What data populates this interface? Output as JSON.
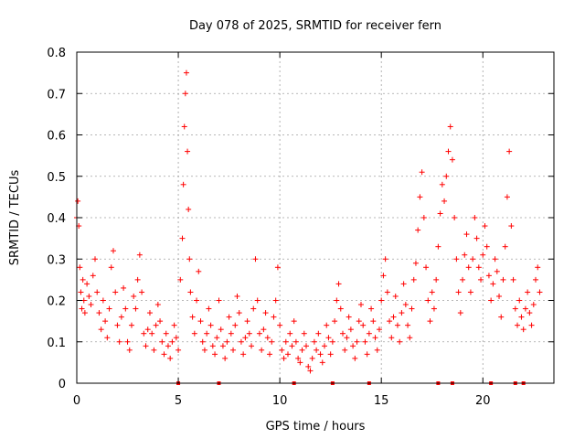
{
  "chart_data": {
    "type": "scatter",
    "title": "Day 078 of 2025, SRMTID for receiver fern",
    "xlabel": "GPS time / hours",
    "ylabel": "SRMTID / TECUs",
    "xlim": [
      0,
      23.5
    ],
    "ylim": [
      0,
      0.8
    ],
    "xticks": [
      0,
      5,
      10,
      15,
      20
    ],
    "yticks": [
      0,
      0.1,
      0.2,
      0.3,
      0.4,
      0.5,
      0.6,
      0.7,
      0.8
    ],
    "grid": true,
    "marker": "plus",
    "color": "#ff0000",
    "series": [
      {
        "name": "SRMTID",
        "points": [
          [
            0.0,
            0.4
          ],
          [
            0.05,
            0.44
          ],
          [
            0.1,
            0.38
          ],
          [
            0.15,
            0.28
          ],
          [
            0.2,
            0.22
          ],
          [
            0.25,
            0.18
          ],
          [
            0.3,
            0.25
          ],
          [
            0.35,
            0.2
          ],
          [
            0.4,
            0.17
          ],
          [
            0.5,
            0.24
          ],
          [
            0.6,
            0.21
          ],
          [
            0.7,
            0.19
          ],
          [
            0.8,
            0.26
          ],
          [
            0.9,
            0.3
          ],
          [
            1.0,
            0.22
          ],
          [
            1.1,
            0.17
          ],
          [
            1.2,
            0.13
          ],
          [
            1.3,
            0.2
          ],
          [
            1.4,
            0.15
          ],
          [
            1.5,
            0.11
          ],
          [
            1.6,
            0.18
          ],
          [
            1.7,
            0.28
          ],
          [
            1.8,
            0.32
          ],
          [
            1.9,
            0.22
          ],
          [
            2.0,
            0.14
          ],
          [
            2.1,
            0.1
          ],
          [
            2.2,
            0.16
          ],
          [
            2.3,
            0.23
          ],
          [
            2.4,
            0.18
          ],
          [
            2.5,
            0.1
          ],
          [
            2.6,
            0.08
          ],
          [
            2.7,
            0.14
          ],
          [
            2.8,
            0.21
          ],
          [
            2.9,
            0.18
          ],
          [
            3.0,
            0.25
          ],
          [
            3.1,
            0.31
          ],
          [
            3.2,
            0.22
          ],
          [
            3.3,
            0.12
          ],
          [
            3.4,
            0.09
          ],
          [
            3.5,
            0.13
          ],
          [
            3.6,
            0.17
          ],
          [
            3.7,
            0.12
          ],
          [
            3.8,
            0.08
          ],
          [
            3.9,
            0.14
          ],
          [
            4.0,
            0.19
          ],
          [
            4.1,
            0.15
          ],
          [
            4.2,
            0.1
          ],
          [
            4.3,
            0.07
          ],
          [
            4.4,
            0.12
          ],
          [
            4.5,
            0.09
          ],
          [
            4.6,
            0.06
          ],
          [
            4.7,
            0.1
          ],
          [
            4.8,
            0.14
          ],
          [
            4.9,
            0.11
          ],
          [
            5.0,
            0.08
          ],
          [
            5.1,
            0.25
          ],
          [
            5.2,
            0.35
          ],
          [
            5.25,
            0.48
          ],
          [
            5.3,
            0.62
          ],
          [
            5.35,
            0.7
          ],
          [
            5.4,
            0.75
          ],
          [
            5.45,
            0.56
          ],
          [
            5.5,
            0.42
          ],
          [
            5.55,
            0.3
          ],
          [
            5.6,
            0.22
          ],
          [
            5.7,
            0.16
          ],
          [
            5.8,
            0.12
          ],
          [
            5.9,
            0.2
          ],
          [
            6.0,
            0.27
          ],
          [
            6.1,
            0.15
          ],
          [
            6.2,
            0.1
          ],
          [
            6.3,
            0.08
          ],
          [
            6.4,
            0.12
          ],
          [
            6.5,
            0.18
          ],
          [
            6.6,
            0.14
          ],
          [
            6.7,
            0.09
          ],
          [
            6.8,
            0.07
          ],
          [
            6.9,
            0.11
          ],
          [
            7.0,
            0.2
          ],
          [
            7.1,
            0.13
          ],
          [
            7.2,
            0.09
          ],
          [
            7.3,
            0.06
          ],
          [
            7.4,
            0.1
          ],
          [
            7.5,
            0.16
          ],
          [
            7.6,
            0.12
          ],
          [
            7.7,
            0.08
          ],
          [
            7.8,
            0.14
          ],
          [
            7.9,
            0.21
          ],
          [
            8.0,
            0.17
          ],
          [
            8.1,
            0.1
          ],
          [
            8.2,
            0.07
          ],
          [
            8.3,
            0.11
          ],
          [
            8.4,
            0.15
          ],
          [
            8.5,
            0.12
          ],
          [
            8.6,
            0.09
          ],
          [
            8.7,
            0.18
          ],
          [
            8.8,
            0.3
          ],
          [
            8.9,
            0.2
          ],
          [
            9.0,
            0.12
          ],
          [
            9.1,
            0.08
          ],
          [
            9.2,
            0.13
          ],
          [
            9.3,
            0.17
          ],
          [
            9.4,
            0.11
          ],
          [
            9.5,
            0.07
          ],
          [
            9.6,
            0.1
          ],
          [
            9.7,
            0.16
          ],
          [
            9.8,
            0.2
          ],
          [
            9.9,
            0.28
          ],
          [
            10.0,
            0.14
          ],
          [
            10.1,
            0.08
          ],
          [
            10.2,
            0.06
          ],
          [
            10.3,
            0.1
          ],
          [
            10.4,
            0.07
          ],
          [
            10.5,
            0.12
          ],
          [
            10.6,
            0.09
          ],
          [
            10.7,
            0.15
          ],
          [
            10.8,
            0.1
          ],
          [
            10.9,
            0.06
          ],
          [
            11.0,
            0.05
          ],
          [
            11.1,
            0.08
          ],
          [
            11.2,
            0.12
          ],
          [
            11.3,
            0.09
          ],
          [
            11.4,
            0.04
          ],
          [
            11.5,
            0.03
          ],
          [
            11.6,
            0.06
          ],
          [
            11.7,
            0.1
          ],
          [
            11.8,
            0.08
          ],
          [
            11.9,
            0.12
          ],
          [
            12.0,
            0.07
          ],
          [
            12.1,
            0.05
          ],
          [
            12.2,
            0.09
          ],
          [
            12.3,
            0.14
          ],
          [
            12.4,
            0.11
          ],
          [
            12.5,
            0.07
          ],
          [
            12.6,
            0.1
          ],
          [
            12.7,
            0.15
          ],
          [
            12.8,
            0.2
          ],
          [
            12.9,
            0.24
          ],
          [
            13.0,
            0.18
          ],
          [
            13.1,
            0.12
          ],
          [
            13.2,
            0.08
          ],
          [
            13.3,
            0.11
          ],
          [
            13.4,
            0.16
          ],
          [
            13.5,
            0.13
          ],
          [
            13.6,
            0.09
          ],
          [
            13.7,
            0.06
          ],
          [
            13.8,
            0.1
          ],
          [
            13.9,
            0.15
          ],
          [
            14.0,
            0.19
          ],
          [
            14.1,
            0.14
          ],
          [
            14.2,
            0.1
          ],
          [
            14.3,
            0.07
          ],
          [
            14.4,
            0.12
          ],
          [
            14.5,
            0.18
          ],
          [
            14.6,
            0.15
          ],
          [
            14.7,
            0.11
          ],
          [
            14.8,
            0.08
          ],
          [
            14.9,
            0.13
          ],
          [
            15.0,
            0.2
          ],
          [
            15.1,
            0.26
          ],
          [
            15.2,
            0.3
          ],
          [
            15.3,
            0.22
          ],
          [
            15.4,
            0.15
          ],
          [
            15.5,
            0.11
          ],
          [
            15.6,
            0.16
          ],
          [
            15.7,
            0.21
          ],
          [
            15.8,
            0.14
          ],
          [
            15.9,
            0.1
          ],
          [
            16.0,
            0.17
          ],
          [
            16.1,
            0.24
          ],
          [
            16.2,
            0.19
          ],
          [
            16.3,
            0.14
          ],
          [
            16.4,
            0.11
          ],
          [
            16.5,
            0.18
          ],
          [
            16.6,
            0.25
          ],
          [
            16.7,
            0.29
          ],
          [
            16.8,
            0.37
          ],
          [
            16.9,
            0.45
          ],
          [
            17.0,
            0.51
          ],
          [
            17.1,
            0.4
          ],
          [
            17.2,
            0.28
          ],
          [
            17.3,
            0.2
          ],
          [
            17.4,
            0.15
          ],
          [
            17.5,
            0.22
          ],
          [
            17.6,
            0.18
          ],
          [
            17.7,
            0.25
          ],
          [
            17.8,
            0.33
          ],
          [
            17.9,
            0.41
          ],
          [
            18.0,
            0.48
          ],
          [
            18.1,
            0.44
          ],
          [
            18.2,
            0.5
          ],
          [
            18.3,
            0.56
          ],
          [
            18.4,
            0.62
          ],
          [
            18.5,
            0.54
          ],
          [
            18.6,
            0.4
          ],
          [
            18.7,
            0.3
          ],
          [
            18.8,
            0.22
          ],
          [
            18.9,
            0.17
          ],
          [
            19.0,
            0.25
          ],
          [
            19.1,
            0.31
          ],
          [
            19.2,
            0.36
          ],
          [
            19.3,
            0.28
          ],
          [
            19.4,
            0.22
          ],
          [
            19.5,
            0.3
          ],
          [
            19.6,
            0.4
          ],
          [
            19.7,
            0.35
          ],
          [
            19.8,
            0.28
          ],
          [
            19.9,
            0.25
          ],
          [
            20.0,
            0.31
          ],
          [
            20.1,
            0.38
          ],
          [
            20.2,
            0.33
          ],
          [
            20.3,
            0.26
          ],
          [
            20.4,
            0.2
          ],
          [
            20.5,
            0.24
          ],
          [
            20.6,
            0.3
          ],
          [
            20.7,
            0.27
          ],
          [
            20.8,
            0.21
          ],
          [
            20.9,
            0.16
          ],
          [
            21.0,
            0.25
          ],
          [
            21.1,
            0.33
          ],
          [
            21.2,
            0.45
          ],
          [
            21.3,
            0.56
          ],
          [
            21.4,
            0.38
          ],
          [
            21.5,
            0.25
          ],
          [
            21.6,
            0.18
          ],
          [
            21.7,
            0.14
          ],
          [
            21.8,
            0.2
          ],
          [
            21.9,
            0.16
          ],
          [
            22.0,
            0.13
          ],
          [
            22.1,
            0.18
          ],
          [
            22.2,
            0.22
          ],
          [
            22.3,
            0.17
          ],
          [
            22.4,
            0.14
          ],
          [
            22.5,
            0.19
          ],
          [
            22.6,
            0.25
          ],
          [
            22.7,
            0.28
          ],
          [
            22.8,
            0.22
          ]
        ]
      }
    ],
    "gap_markers_x": [
      5.0,
      7.0,
      10.7,
      12.6,
      14.4,
      17.8,
      18.5,
      20.4,
      21.6,
      22.0
    ]
  }
}
